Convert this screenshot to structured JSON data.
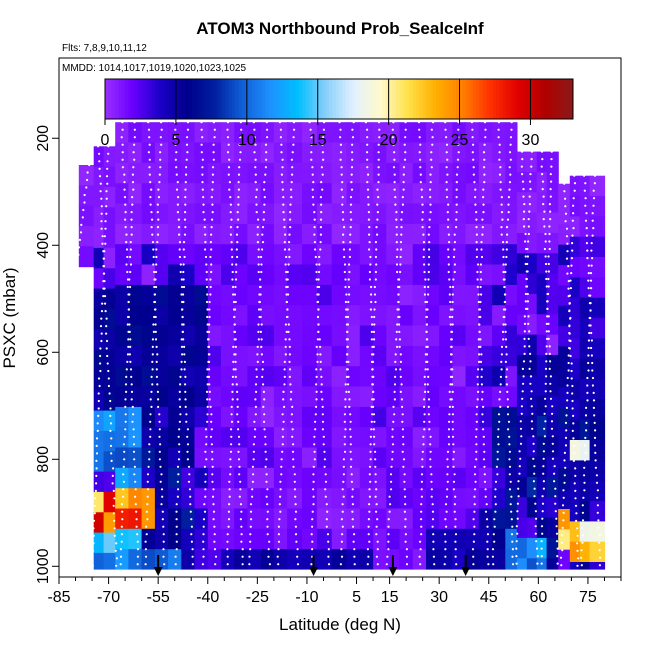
{
  "chart_data": {
    "type": "heatmap",
    "title": "ATOM3 Northbound Prob_SealceInf",
    "flights_note": "Flts: 7,8,9,10,11,12",
    "dates_note": "MMDD: 1014,1017,1019,1020,1023,1025",
    "xlabel": "Latitude (deg N)",
    "ylabel": "PSXC (mbar)",
    "xlim": [
      -85,
      85
    ],
    "ylim": [
      1020,
      50
    ],
    "x_ticks": [
      -85,
      -70,
      -55,
      -40,
      -25,
      -10,
      5,
      15,
      30,
      45,
      60,
      75
    ],
    "y_ticks": [
      200,
      400,
      600,
      800,
      1000
    ],
    "colorbar": {
      "min": 0,
      "max": 33,
      "ticks": [
        0,
        5,
        10,
        15,
        20,
        25,
        30
      ],
      "colors": [
        "#9b30ff",
        "#6a00ff",
        "#1a00c8",
        "#00008b",
        "#0020a0",
        "#1060d8",
        "#1e90ff",
        "#00bfff",
        "#87cefa",
        "#e0f0ff",
        "#fffacd",
        "#ffe14a",
        "#ffb000",
        "#ff7f00",
        "#ff3000",
        "#e00000",
        "#b00000",
        "#8b1a1a"
      ]
    },
    "arrow_latitudes": [
      -55,
      -8,
      16,
      38
    ],
    "profile_latitudes": [
      -76,
      -73,
      -70,
      -66,
      -62,
      -58,
      -54,
      -50,
      -46,
      -42,
      -38,
      -34,
      -30,
      -26,
      -22,
      -18,
      -14,
      -9,
      -5,
      0,
      4,
      8,
      12,
      16,
      20,
      24,
      28,
      32,
      36,
      40,
      44,
      48,
      52,
      55,
      58,
      61,
      64,
      68,
      71,
      74,
      77
    ],
    "regions": [
      {
        "lat": [
          -85,
          -55
        ],
        "p": [
          850,
          940
        ],
        "value": 27
      },
      {
        "lat": [
          -75,
          -60
        ],
        "p": [
          930,
          970
        ],
        "value": 14
      },
      {
        "lat": [
          -75,
          -48
        ],
        "p": [
          970,
          1010
        ],
        "value": 11
      },
      {
        "lat": [
          -75,
          -60
        ],
        "p": [
          720,
          840
        ],
        "value": 12
      },
      {
        "lat": [
          -78,
          -40
        ],
        "p": [
          480,
          720
        ],
        "value": 6
      },
      {
        "lat": [
          -35,
          10
        ],
        "p": [
          950,
          1010
        ],
        "value": 5
      },
      {
        "lat": [
          25,
          45
        ],
        "p": [
          930,
          990
        ],
        "value": 5
      },
      {
        "lat": [
          52,
          62
        ],
        "p": [
          930,
          1000
        ],
        "value": 12
      },
      {
        "lat": [
          55,
          78
        ],
        "p": [
          600,
          860
        ],
        "value": 5
      },
      {
        "lat": [
          68,
          78
        ],
        "p": [
          900,
          980
        ],
        "value": 23
      },
      {
        "lat": [
          70,
          76
        ],
        "p": [
          760,
          820
        ],
        "value": 20
      }
    ]
  }
}
